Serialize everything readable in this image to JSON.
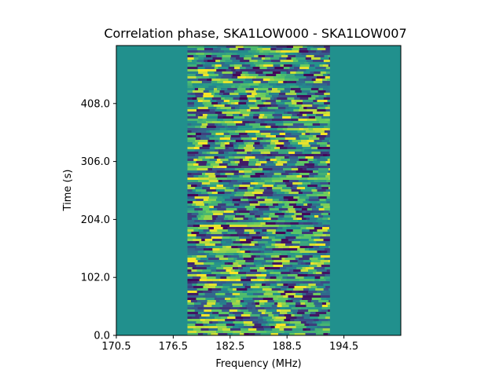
{
  "chart_data": {
    "type": "heatmap",
    "title": "Correlation phase, SKA1LOW000 - SKA1LOW007",
    "xlabel": "Frequency (MHz)",
    "ylabel": "Time (s)",
    "xlim": [
      170.5,
      200.5
    ],
    "ylim": [
      0.0,
      510.0
    ],
    "x_ticks": [
      170.5,
      176.5,
      182.5,
      188.5,
      194.5
    ],
    "x_tick_labels": [
      "170.5",
      "176.5",
      "182.5",
      "188.5",
      "194.5"
    ],
    "y_ticks": [
      0.0,
      102.0,
      204.0,
      306.0,
      408.0
    ],
    "y_tick_labels": [
      "0.0",
      "102.0",
      "204.0",
      "306.0",
      "408.0"
    ],
    "data_band_frequency_range": [
      178.0,
      193.0
    ],
    "background_value_color": "#21908d",
    "colormap": [
      "#440154",
      "#3b528b",
      "#21908d",
      "#5dc963",
      "#fde725"
    ],
    "grid": false,
    "legend": "none"
  }
}
